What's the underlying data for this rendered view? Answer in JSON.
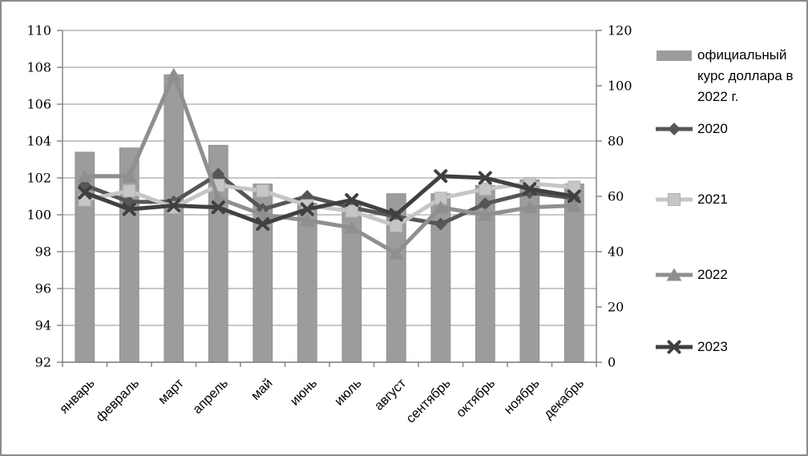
{
  "chart_data": {
    "type": "combo-bar-line",
    "title": "",
    "categories": [
      "январь",
      "февраль",
      "март",
      "апрель",
      "май",
      "июнь",
      "июль",
      "август",
      "сентябрь",
      "октябрь",
      "ноябрь",
      "декабрь"
    ],
    "bar_series": {
      "name": "официальный курс доллара в 2022 г.",
      "axis": "right",
      "color": "#9c9c9c",
      "values": [
        76,
        77.5,
        104,
        78.5,
        64.5,
        57.5,
        57,
        61,
        61,
        64,
        66,
        64.5
      ]
    },
    "line_series": [
      {
        "name": "2020",
        "marker": "diamond",
        "color": "#565656",
        "axis": "left",
        "values": [
          101.6,
          100.7,
          100.7,
          102.2,
          100.3,
          101.0,
          100.4,
          99.9,
          99.5,
          100.6,
          101.2,
          100.9
        ]
      },
      {
        "name": "2021",
        "marker": "square",
        "color": "#c6c6c6",
        "axis": "left",
        "values": [
          100.8,
          101.3,
          100.4,
          101.6,
          101.3,
          100.5,
          100.2,
          99.4,
          100.9,
          101.4,
          101.7,
          101.5
        ]
      },
      {
        "name": "2022",
        "marker": "triangle",
        "color": "#8f8f8f",
        "axis": "left",
        "values": [
          102.1,
          102.1,
          107.6,
          100.9,
          100.0,
          99.7,
          99.3,
          97.9,
          100.4,
          100.0,
          100.4,
          100.5
        ]
      },
      {
        "name": "2023",
        "marker": "x-cross",
        "color": "#404040",
        "axis": "left",
        "values": [
          101.2,
          100.3,
          100.5,
          100.4,
          99.5,
          100.3,
          100.8,
          100.0,
          102.1,
          102.0,
          101.4,
          101.0
        ]
      }
    ],
    "left_axis": {
      "min": 92,
      "max": 110,
      "step": 2,
      "tick_labels": [
        "110",
        "108",
        "106",
        "104",
        "102",
        "100",
        "98",
        "96",
        "94",
        "92"
      ]
    },
    "right_axis": {
      "min": 0,
      "max": 120,
      "step": 20,
      "tick_labels": [
        "120",
        "100",
        "80",
        "60",
        "40",
        "20",
        "0"
      ]
    },
    "grid": true,
    "legend_position": "right",
    "legend_items": [
      {
        "label": "официальный курс доллара в 2022 г.",
        "swatch": "bar"
      },
      {
        "label": "2020",
        "swatch": "diamond"
      },
      {
        "label": "2021",
        "swatch": "square"
      },
      {
        "label": "2022",
        "swatch": "triangle"
      },
      {
        "label": "2023",
        "swatch": "x-cross"
      }
    ],
    "colors": {
      "gridline": "#a6a6a6",
      "axis_line": "#7f7f7f",
      "text": "#000000"
    }
  }
}
